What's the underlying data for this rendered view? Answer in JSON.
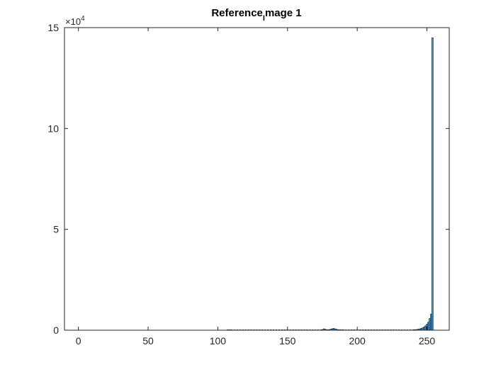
{
  "chart_data": {
    "type": "bar",
    "title": {
      "part1": "Reference",
      "subscript": "I",
      "part2": "mage 1"
    },
    "xlabel": "",
    "ylabel": "",
    "xlim": [
      -10,
      266
    ],
    "ylim": [
      0,
      150000
    ],
    "x_ticks": [
      0,
      50,
      100,
      150,
      200,
      250
    ],
    "x_tick_labels": [
      "0",
      "50",
      "100",
      "150",
      "200",
      "250"
    ],
    "y_ticks": [
      0,
      50000,
      100000,
      150000
    ],
    "y_tick_labels": [
      "0",
      "5",
      "10",
      "15"
    ],
    "y_exponent": {
      "base": "×10",
      "power": "4"
    },
    "grid": false,
    "bar_color": "#4d8fbf",
    "bar_edge_color": "#000000",
    "x": [
      107,
      108,
      109,
      110,
      112,
      114,
      116,
      118,
      120,
      122,
      124,
      126,
      128,
      130,
      132,
      134,
      136,
      138,
      140,
      142,
      144,
      146,
      148,
      150,
      152,
      154,
      156,
      158,
      160,
      162,
      164,
      166,
      168,
      170,
      172,
      174,
      175,
      176,
      177,
      178,
      179,
      180,
      181,
      182,
      183,
      184,
      185,
      186,
      187,
      188,
      189,
      190,
      192,
      194,
      196,
      198,
      200,
      202,
      204,
      206,
      208,
      210,
      212,
      214,
      216,
      218,
      220,
      222,
      224,
      226,
      228,
      230,
      232,
      234,
      236,
      238,
      240,
      241,
      242,
      243,
      244,
      245,
      246,
      247,
      248,
      249,
      250,
      251,
      252,
      253,
      254
    ],
    "values": [
      150,
      200,
      150,
      100,
      150,
      150,
      150,
      150,
      100,
      120,
      150,
      150,
      150,
      200,
      150,
      150,
      150,
      200,
      150,
      150,
      200,
      150,
      150,
      150,
      150,
      150,
      150,
      150,
      150,
      150,
      150,
      150,
      150,
      150,
      150,
      200,
      300,
      700,
      500,
      300,
      200,
      300,
      500,
      700,
      900,
      700,
      500,
      300,
      200,
      150,
      150,
      150,
      150,
      150,
      150,
      150,
      150,
      150,
      150,
      150,
      150,
      150,
      150,
      150,
      150,
      150,
      150,
      150,
      150,
      150,
      150,
      150,
      150,
      150,
      150,
      150,
      200,
      250,
      300,
      400,
      500,
      700,
      900,
      1200,
      1600,
      2200,
      3000,
      4000,
      5800,
      8000,
      145000
    ]
  }
}
